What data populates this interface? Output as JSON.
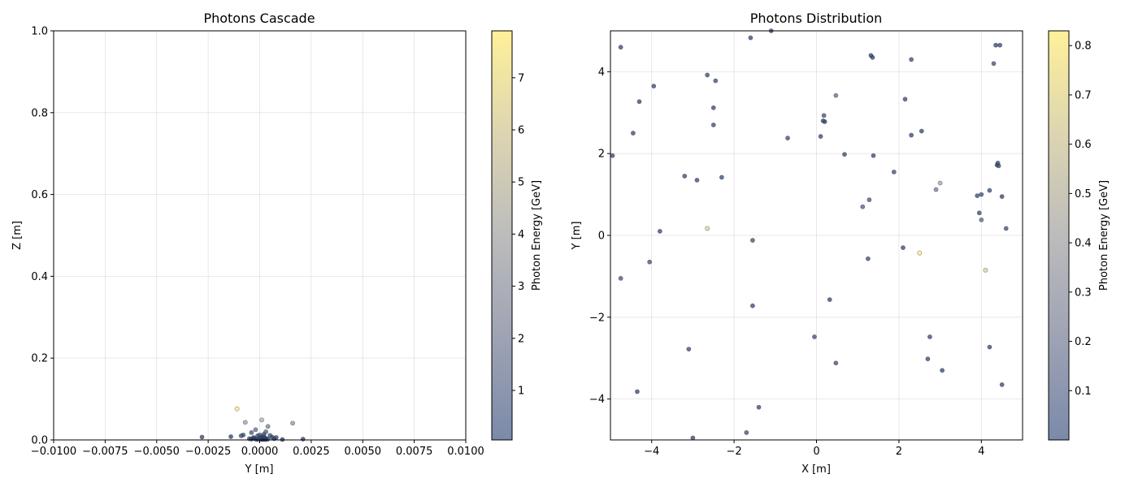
{
  "chart_data": [
    {
      "type": "scatter",
      "title": "Photons Cascade",
      "xlabel": "Y [m]",
      "ylabel": "Z [m]",
      "xlim": [
        -0.01,
        0.01
      ],
      "ylim": [
        0,
        1
      ],
      "xticks": [
        "−0.0100",
        "−0.0075",
        "−0.0050",
        "−0.0025",
        "0.0000",
        "0.0025",
        "0.0050",
        "0.0075",
        "0.0100"
      ],
      "yticks": [
        "0.0",
        "0.2",
        "0.4",
        "0.6",
        "0.8",
        "1.0"
      ],
      "grid": true,
      "colorbar": {
        "label": "Photon Energy [GeV]",
        "min": 0.05,
        "max": 7.9,
        "ticks": [
          "1",
          "2",
          "3",
          "4",
          "5",
          "6",
          "7"
        ]
      },
      "series": [
        {
          "x": [
            -0.0011,
            0.0001,
            -0.0007,
            0.0016,
            0.0004,
            -0.0002,
            0.0003,
            -0.0028,
            -0.0014,
            -0.0008,
            0.0021,
            -0.0009,
            0.0011,
            0.0008,
            -0.0004,
            0.0002,
            0.0,
            -0.0001,
            0.0005,
            0.0001,
            -0.0003,
            0.0002,
            0.0006,
            -0.0005,
            0.0003,
            -0.0002,
            0.0001,
            0.0004,
            -0.0001,
            0.0,
            0.0002,
            -0.0004,
            0.0007,
            0.0003,
            -0.0003,
            0.0001,
            0.0002
          ],
          "y": [
            0.076,
            0.049,
            0.043,
            0.041,
            0.033,
            0.025,
            0.02,
            0.007,
            0.008,
            0.012,
            0.002,
            0.01,
            0.001,
            0.006,
            0.018,
            0.014,
            0.012,
            0.01,
            0.011,
            0.008,
            0.006,
            0.006,
            0.007,
            0.003,
            0.004,
            0.002,
            0.003,
            0.002,
            0.001,
            0.005,
            0.001,
            0.002,
            0.003,
            0.001,
            0.004,
            0.001,
            0.009
          ],
          "c": [
            7.9,
            3.6,
            3.2,
            2.9,
            2.3,
            1.8,
            1.2,
            0.4,
            0.3,
            0.6,
            0.2,
            0.7,
            0.2,
            0.4,
            1.0,
            0.9,
            0.8,
            0.5,
            0.7,
            0.4,
            0.3,
            0.2,
            0.3,
            0.1,
            0.2,
            0.1,
            0.1,
            0.1,
            0.05,
            0.3,
            0.05,
            0.1,
            0.2,
            0.1,
            0.2,
            0.05,
            0.5
          ]
        }
      ]
    },
    {
      "type": "scatter",
      "title": "Photons Distribution",
      "xlabel": "X [m]",
      "ylabel": "Y [m]",
      "xlim": [
        -5,
        5
      ],
      "ylim": [
        -5,
        5
      ],
      "xticks": [
        "−4",
        "−2",
        "0",
        "2",
        "4"
      ],
      "yticks": [
        "−4",
        "−2",
        "0",
        "2",
        "4"
      ],
      "grid": true,
      "colorbar": {
        "label": "Photon Energy [GeV]",
        "min": 0.0,
        "max": 0.83,
        "ticks": [
          "0.1",
          "0.2",
          "0.3",
          "0.4",
          "0.5",
          "0.6",
          "0.7",
          "0.8"
        ]
      },
      "series": [
        {
          "x": [
            -4.75,
            -1.6,
            -1.1,
            1.32,
            1.36,
            2.3,
            4.35,
            4.45,
            4.3,
            -2.65,
            -2.45,
            -2.5,
            -3.95,
            -4.3,
            0.47,
            2.15,
            0.18,
            0.16,
            0.2,
            -2.5,
            -4.45,
            -0.7,
            0.1,
            2.3,
            2.55,
            0.68,
            1.38,
            4.4,
            4.38,
            4.42,
            -4.95,
            1.88,
            -3.2,
            -2.9,
            -2.3,
            3.0,
            2.9,
            4.2,
            3.9,
            4.0,
            4.5,
            1.28,
            1.12,
            3.95,
            4.0,
            4.6,
            -3.8,
            -2.65,
            -1.55,
            2.5,
            -4.05,
            2.1,
            1.25,
            4.1,
            -4.75,
            0.32,
            -1.55,
            2.75,
            -0.05,
            4.2,
            -3.1,
            2.7,
            0.47,
            3.05,
            4.5,
            -4.35,
            -1.4,
            -1.7,
            -3.0
          ],
          "y": [
            4.6,
            4.83,
            5.0,
            4.4,
            4.35,
            4.3,
            4.65,
            4.65,
            4.2,
            3.92,
            3.78,
            3.12,
            3.65,
            3.27,
            3.42,
            3.33,
            2.93,
            2.8,
            2.78,
            2.7,
            2.5,
            2.38,
            2.42,
            2.45,
            2.55,
            1.98,
            1.95,
            1.77,
            1.72,
            1.7,
            1.95,
            1.55,
            1.45,
            1.35,
            1.42,
            1.28,
            1.12,
            1.1,
            0.97,
            1.0,
            0.95,
            0.87,
            0.7,
            0.55,
            0.38,
            0.17,
            0.1,
            0.17,
            -0.12,
            -0.43,
            -0.65,
            -0.3,
            -0.57,
            -0.85,
            -1.05,
            -1.57,
            -1.72,
            -2.48,
            -2.48,
            -2.73,
            -2.78,
            -3.02,
            -3.12,
            -3.3,
            -3.65,
            -3.82,
            -4.2,
            -4.82,
            -4.95
          ],
          "c": [
            0.05,
            0.05,
            0.05,
            0.03,
            0.04,
            0.06,
            0.04,
            0.05,
            0.08,
            0.05,
            0.06,
            0.05,
            0.05,
            0.05,
            0.18,
            0.05,
            0.08,
            0.05,
            0.04,
            0.06,
            0.05,
            0.06,
            0.05,
            0.05,
            0.05,
            0.05,
            0.05,
            0.06,
            0.05,
            0.07,
            0.05,
            0.06,
            0.05,
            0.05,
            0.06,
            0.35,
            0.22,
            0.06,
            0.05,
            0.07,
            0.04,
            0.1,
            0.12,
            0.05,
            0.15,
            0.06,
            0.05,
            0.65,
            0.07,
            0.83,
            0.08,
            0.05,
            0.06,
            0.62,
            0.09,
            0.05,
            0.05,
            0.05,
            0.06,
            0.05,
            0.06,
            0.05,
            0.07,
            0.04,
            0.05,
            0.05,
            0.05,
            0.06,
            0.05
          ]
        }
      ]
    }
  ]
}
